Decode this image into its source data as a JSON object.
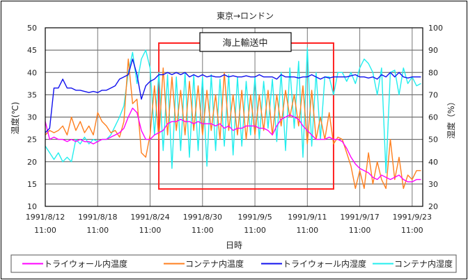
{
  "chart_data": {
    "type": "line",
    "title": "東京→ロンドン",
    "xlabel": "日時",
    "ylabel_left": "温度(℃)",
    "ylabel_right": "湿度（%）",
    "ylim_left": [
      10,
      50
    ],
    "ylim_right": [
      20,
      100
    ],
    "yticks_left": [
      10,
      15,
      20,
      25,
      30,
      35,
      40,
      45,
      50
    ],
    "yticks_right": [
      20,
      30,
      40,
      50,
      60,
      70,
      80,
      90,
      100
    ],
    "xlim": [
      "1991/8/12 11:00",
      "1991/9/24 16:00"
    ],
    "xticks": [
      {
        "date": "1991/8/12",
        "time": "11:00"
      },
      {
        "date": "1991/8/18",
        "time": "11:00"
      },
      {
        "date": "1991/8/24",
        "time": "11:00"
      },
      {
        "date": "1991/8/30",
        "time": "11:00"
      },
      {
        "date": "1991/9/5",
        "time": "11:00"
      },
      {
        "date": "1991/9/11",
        "time": "11:00"
      },
      {
        "date": "1991/9/17",
        "time": "11:00"
      },
      {
        "date": "1991/9/23",
        "time": "11:00"
      }
    ],
    "grid": true,
    "legend_position": "bottom",
    "annotation": {
      "label": "海上輸送中",
      "from": "1991/8/25 11:00",
      "to": "1991/9/14 11:00",
      "color": "#ff2020"
    },
    "x": [
      "1991/8/12 11:00",
      "1991/8/12 23:00",
      "1991/8/13 11:00",
      "1991/8/13 23:00",
      "1991/8/14 11:00",
      "1991/8/14 23:00",
      "1991/8/15 11:00",
      "1991/8/15 23:00",
      "1991/8/16 11:00",
      "1991/8/16 23:00",
      "1991/8/17 11:00",
      "1991/8/17 23:00",
      "1991/8/18 11:00",
      "1991/8/18 23:00",
      "1991/8/19 11:00",
      "1991/8/19 23:00",
      "1991/8/20 11:00",
      "1991/8/20 23:00",
      "1991/8/21 11:00",
      "1991/8/21 23:00",
      "1991/8/22 11:00",
      "1991/8/22 23:00",
      "1991/8/23 11:00",
      "1991/8/23 23:00",
      "1991/8/24 11:00",
      "1991/8/24 23:00",
      "1991/8/25 11:00",
      "1991/8/25 23:00",
      "1991/8/26 11:00",
      "1991/8/26 23:00",
      "1991/8/27 11:00",
      "1991/8/27 23:00",
      "1991/8/28 11:00",
      "1991/8/28 23:00",
      "1991/8/29 11:00",
      "1991/8/29 23:00",
      "1991/8/30 11:00",
      "1991/8/30 23:00",
      "1991/8/31 11:00",
      "1991/8/31 23:00",
      "1991/9/1 11:00",
      "1991/9/1 23:00",
      "1991/9/2 11:00",
      "1991/9/2 23:00",
      "1991/9/3 11:00",
      "1991/9/3 23:00",
      "1991/9/4 11:00",
      "1991/9/4 23:00",
      "1991/9/5 11:00",
      "1991/9/5 23:00",
      "1991/9/6 11:00",
      "1991/9/6 23:00",
      "1991/9/7 11:00",
      "1991/9/7 23:00",
      "1991/9/8 11:00",
      "1991/9/8 23:00",
      "1991/9/9 11:00",
      "1991/9/9 23:00",
      "1991/9/10 11:00",
      "1991/9/10 23:00",
      "1991/9/11 11:00",
      "1991/9/11 23:00",
      "1991/9/12 11:00",
      "1991/9/12 23:00",
      "1991/9/13 11:00",
      "1991/9/13 23:00",
      "1991/9/14 11:00",
      "1991/9/14 23:00",
      "1991/9/15 11:00",
      "1991/9/15 23:00",
      "1991/9/16 11:00",
      "1991/9/16 23:00",
      "1991/9/17 11:00",
      "1991/9/17 23:00",
      "1991/9/18 11:00",
      "1991/9/18 23:00",
      "1991/9/19 11:00",
      "1991/9/19 23:00",
      "1991/9/20 11:00",
      "1991/9/20 23:00",
      "1991/9/21 11:00",
      "1991/9/21 23:00",
      "1991/9/22 11:00",
      "1991/9/22 23:00",
      "1991/9/23 11:00",
      "1991/9/23 23:00",
      "1991/9/24 11:00"
    ],
    "series": [
      {
        "name": "トライウォール内温度",
        "axis": "left",
        "color": "#ff00ff",
        "values": [
          29,
          25,
          25.5,
          25,
          25,
          24.5,
          25,
          24.5,
          25,
          24.5,
          24.5,
          24,
          24.5,
          25,
          25,
          25.5,
          26,
          26.5,
          27.5,
          30,
          32,
          31,
          27,
          25,
          25,
          26,
          26.5,
          27,
          28.5,
          29,
          29,
          29.5,
          29,
          29,
          28.5,
          29,
          28.5,
          28.5,
          28.5,
          28,
          28.5,
          27.5,
          28,
          27,
          27.5,
          27.5,
          28,
          28,
          28,
          27.5,
          27.5,
          27,
          26,
          28,
          29.5,
          30,
          30.5,
          30,
          29.5,
          28,
          27,
          26,
          25,
          25,
          25,
          25.5,
          25,
          25,
          24.5,
          23,
          21,
          19.5,
          18.5,
          18,
          17.5,
          16.5,
          16,
          17,
          16.5,
          16,
          16.5,
          17,
          16,
          15.5,
          15.5,
          16,
          16
        ]
      },
      {
        "name": "コンテナ内温度",
        "axis": "left",
        "color": "#ff7f1e",
        "values": [
          26,
          27,
          26.5,
          27,
          28,
          26,
          30,
          27,
          29,
          26.5,
          28,
          26,
          31,
          29,
          28,
          26.5,
          27,
          25.5,
          29,
          43,
          33,
          34,
          22,
          21,
          26,
          37,
          25,
          41,
          26,
          39,
          27,
          36,
          26,
          38,
          27,
          37,
          26,
          36,
          27,
          35,
          25,
          40,
          27,
          35,
          26,
          36,
          25,
          35,
          26,
          35,
          27,
          36,
          26,
          35,
          28,
          36,
          30,
          35,
          28,
          37,
          24,
          36,
          25,
          30,
          25,
          31,
          24,
          25.5,
          25,
          22,
          19,
          14,
          18,
          14,
          22,
          15,
          20,
          16,
          14,
          25,
          16,
          21,
          14,
          17,
          16,
          18,
          18
        ]
      },
      {
        "name": "トライウォール内湿度",
        "axis": "right",
        "color": "#1010ee",
        "values": [
          53,
          55,
          73,
          73,
          77,
          73,
          73,
          72,
          72,
          71.5,
          71,
          71.5,
          71,
          72,
          72,
          73,
          74,
          77,
          78,
          79,
          86,
          79,
          68,
          74,
          76,
          77,
          79,
          79,
          80,
          79,
          80,
          79,
          80,
          78,
          79,
          78,
          79,
          78,
          78.5,
          78,
          78,
          79,
          78,
          78.5,
          78,
          78,
          78.5,
          78,
          78,
          79,
          78,
          78,
          78,
          77,
          79,
          78,
          78,
          78,
          77.5,
          78,
          78,
          79,
          78,
          77,
          78,
          77.5,
          78,
          78,
          78,
          78,
          78.5,
          79,
          78,
          78,
          77.5,
          78,
          77,
          79,
          78,
          80,
          78,
          80,
          78,
          77.5,
          78,
          78,
          78
        ]
      },
      {
        "name": "コンテナ内湿度",
        "axis": "right",
        "color": "#22eeee",
        "values": [
          47,
          44,
          41,
          44,
          40,
          42,
          40,
          50,
          48,
          51,
          48,
          50,
          49,
          50,
          50,
          52,
          56,
          60,
          65,
          80,
          89,
          75,
          86,
          90,
          82,
          52,
          80,
          45,
          79,
          37,
          78,
          45,
          80,
          42,
          79,
          45,
          78,
          38,
          79,
          45,
          77,
          47,
          79,
          43,
          78,
          47,
          76,
          52,
          78,
          50,
          76,
          55,
          77,
          49,
          80,
          45,
          82,
          55,
          85,
          42,
          91,
          47,
          80,
          50,
          78,
          78,
          70,
          80,
          80,
          76,
          80,
          75,
          82,
          86,
          84,
          80,
          70,
          82,
          35,
          80,
          81,
          70,
          82,
          75,
          78,
          74,
          75
        ]
      }
    ]
  }
}
